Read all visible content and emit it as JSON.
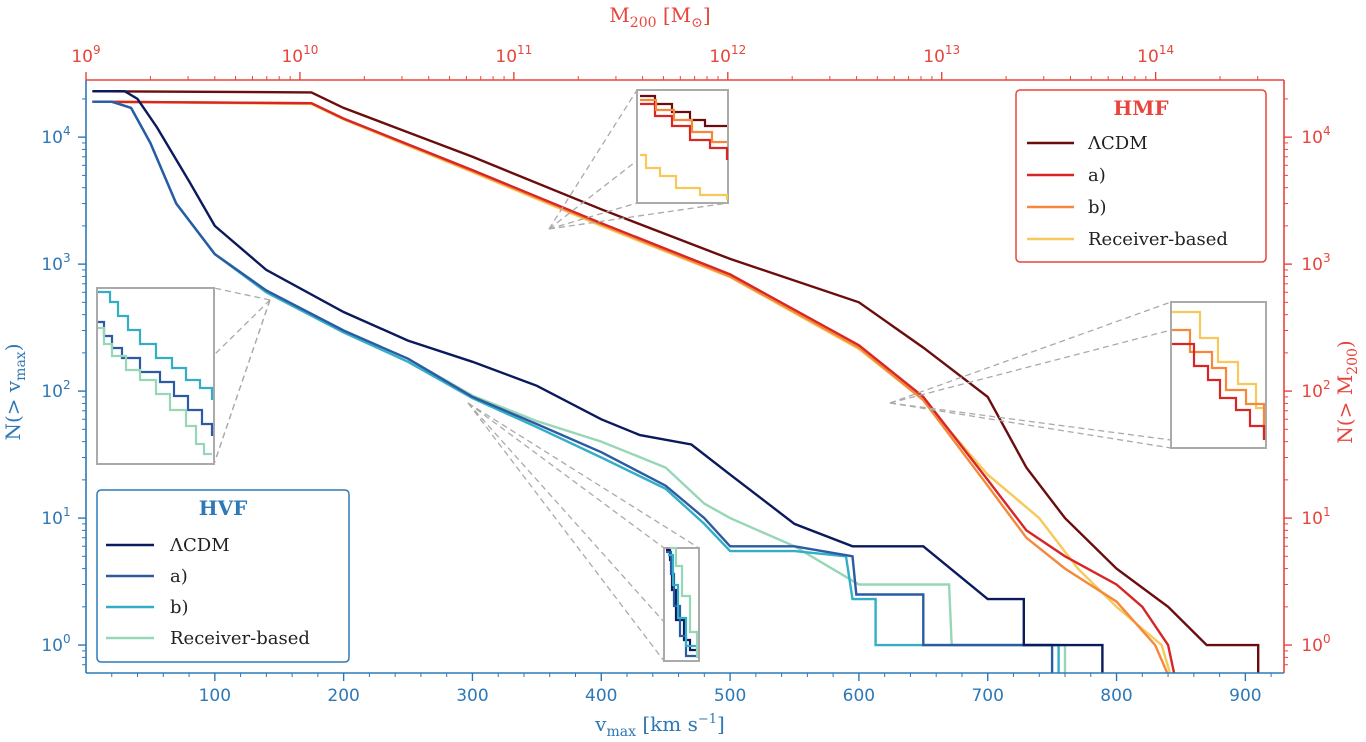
{
  "chart_data": {
    "type": "line",
    "colors": {
      "hvf_axis": "#2e78b5",
      "hmf_axis": "#e8453c",
      "hvf_lcdm": "#0a1a5c",
      "hvf_a": "#2a5ba3",
      "hvf_b": "#34aec6",
      "hvf_rb": "#97d6b6",
      "hmf_lcdm": "#6b0d0d",
      "hmf_a": "#d72626",
      "hmf_b": "#f5883a",
      "hmf_rb": "#f7c95a",
      "inset": "#aaaaaa"
    },
    "axes": {
      "xlabel_main": "v",
      "xlabel_sub": "max",
      "xlabel_units": " [km s",
      "xlabel_exp": "−1",
      "xlabel_close": "]",
      "xlim": [
        0,
        930
      ],
      "xticks": [
        100,
        200,
        300,
        400,
        500,
        600,
        700,
        800,
        900
      ],
      "xtick_labels": [
        "100",
        "200",
        "300",
        "400",
        "500",
        "600",
        "700",
        "800",
        "900"
      ],
      "top_label_main": "M",
      "top_label_sub": "200",
      "top_label_units": " [M",
      "top_label_sun": "⊙",
      "top_label_close": "]",
      "top_log_range": [
        9,
        14.6
      ],
      "top_tick_exps": [
        "9",
        "10",
        "11",
        "12",
        "13",
        "14"
      ],
      "ylabel_left_main": "N(> v",
      "ylabel_left_sub": "max",
      "ylabel_left_close": ")",
      "ylabel_right_main": "N(> M",
      "ylabel_right_sub": "200",
      "ylabel_right_close": ")",
      "ylim_log": [
        -0.22,
        4.45
      ],
      "ytick_exps": [
        "0",
        "1",
        "2",
        "3",
        "4"
      ]
    },
    "legend_hvf": {
      "title": "HVF",
      "position": "lower-left",
      "entries": [
        "ΛCDM",
        "a)",
        "b)",
        "Receiver-based"
      ]
    },
    "legend_hmf": {
      "title": "HMF",
      "position": "upper-right",
      "entries": [
        "ΛCDM",
        "a)",
        "b)",
        "Receiver-based"
      ]
    },
    "series_hvf": [
      {
        "name": "ΛCDM",
        "color_key": "hvf_lcdm",
        "points": [
          [
            5,
            23000
          ],
          [
            30,
            23000
          ],
          [
            40,
            20000
          ],
          [
            55,
            12000
          ],
          [
            80,
            4500
          ],
          [
            100,
            2000
          ],
          [
            140,
            900
          ],
          [
            200,
            420
          ],
          [
            250,
            250
          ],
          [
            300,
            170
          ],
          [
            350,
            110
          ],
          [
            400,
            60
          ],
          [
            430,
            45
          ],
          [
            470,
            38
          ],
          [
            500,
            22
          ],
          [
            550,
            9
          ],
          [
            595,
            6
          ],
          [
            600,
            6
          ],
          [
            650,
            6
          ],
          [
            700,
            2.3
          ],
          [
            728,
            2.3
          ],
          [
            728,
            1
          ],
          [
            789,
            1
          ],
          [
            789,
            0.55
          ]
        ]
      },
      {
        "name": "a)",
        "color_key": "hvf_a",
        "points": [
          [
            5,
            19000
          ],
          [
            20,
            19000
          ],
          [
            35,
            17000
          ],
          [
            50,
            9000
          ],
          [
            70,
            3000
          ],
          [
            100,
            1200
          ],
          [
            140,
            620
          ],
          [
            200,
            300
          ],
          [
            250,
            180
          ],
          [
            300,
            90
          ],
          [
            350,
            55
          ],
          [
            400,
            33
          ],
          [
            450,
            18
          ],
          [
            480,
            10
          ],
          [
            500,
            6
          ],
          [
            550,
            6
          ],
          [
            595,
            5
          ],
          [
            598,
            2.5
          ],
          [
            650,
            2.5
          ],
          [
            650,
            1
          ],
          [
            750,
            1
          ],
          [
            750,
            0.55
          ]
        ]
      },
      {
        "name": "b)",
        "color_key": "hvf_b",
        "points": [
          [
            5,
            19000
          ],
          [
            20,
            19000
          ],
          [
            35,
            17000
          ],
          [
            50,
            9000
          ],
          [
            70,
            3000
          ],
          [
            100,
            1200
          ],
          [
            140,
            600
          ],
          [
            200,
            290
          ],
          [
            250,
            170
          ],
          [
            300,
            88
          ],
          [
            350,
            52
          ],
          [
            400,
            30
          ],
          [
            450,
            17
          ],
          [
            480,
            9
          ],
          [
            500,
            5.5
          ],
          [
            550,
            5.5
          ],
          [
            590,
            5
          ],
          [
            595,
            2.3
          ],
          [
            613,
            2.3
          ],
          [
            613,
            1
          ],
          [
            755,
            1
          ],
          [
            755,
            0.55
          ]
        ]
      },
      {
        "name": "Receiver-based",
        "color_key": "hvf_rb",
        "points": [
          [
            5,
            19000
          ],
          [
            20,
            19000
          ],
          [
            35,
            17000
          ],
          [
            50,
            9000
          ],
          [
            70,
            3000
          ],
          [
            100,
            1200
          ],
          [
            140,
            620
          ],
          [
            200,
            290
          ],
          [
            250,
            180
          ],
          [
            300,
            92
          ],
          [
            350,
            58
          ],
          [
            400,
            40
          ],
          [
            450,
            25
          ],
          [
            480,
            13
          ],
          [
            500,
            10
          ],
          [
            550,
            6
          ],
          [
            600,
            3
          ],
          [
            670,
            3
          ],
          [
            672,
            1
          ],
          [
            760,
            1
          ],
          [
            760,
            0.55
          ]
        ]
      }
    ],
    "series_hmf": [
      {
        "name": "ΛCDM",
        "color_key": "hmf_lcdm",
        "points": [
          [
            5,
            23000
          ],
          [
            175,
            22500
          ],
          [
            200,
            17000
          ],
          [
            300,
            7000
          ],
          [
            400,
            2700
          ],
          [
            500,
            1100
          ],
          [
            600,
            500
          ],
          [
            650,
            220
          ],
          [
            700,
            90
          ],
          [
            730,
            25
          ],
          [
            760,
            10
          ],
          [
            800,
            4
          ],
          [
            840,
            2
          ],
          [
            870,
            1
          ],
          [
            910,
            1
          ],
          [
            910,
            0.55
          ]
        ]
      },
      {
        "name": "a)",
        "color_key": "hmf_a",
        "points": [
          [
            5,
            19000
          ],
          [
            175,
            18500
          ],
          [
            200,
            14000
          ],
          [
            300,
            5500
          ],
          [
            400,
            2100
          ],
          [
            500,
            830
          ],
          [
            600,
            230
          ],
          [
            650,
            90
          ],
          [
            700,
            20
          ],
          [
            730,
            8
          ],
          [
            760,
            5
          ],
          [
            800,
            3
          ],
          [
            820,
            2
          ],
          [
            840,
            1
          ],
          [
            845,
            0.55
          ]
        ]
      },
      {
        "name": "b)",
        "color_key": "hmf_b",
        "points": [
          [
            5,
            19000
          ],
          [
            175,
            18500
          ],
          [
            200,
            14000
          ],
          [
            300,
            5400
          ],
          [
            400,
            2050
          ],
          [
            500,
            800
          ],
          [
            600,
            220
          ],
          [
            650,
            85
          ],
          [
            700,
            18
          ],
          [
            730,
            7
          ],
          [
            760,
            4
          ],
          [
            800,
            2.2
          ],
          [
            830,
            1
          ],
          [
            840,
            0.55
          ]
        ]
      },
      {
        "name": "Receiver-based",
        "color_key": "hmf_rb",
        "points": [
          [
            5,
            19000
          ],
          [
            175,
            18200
          ],
          [
            200,
            13800
          ],
          [
            300,
            5300
          ],
          [
            400,
            2000
          ],
          [
            500,
            790
          ],
          [
            600,
            215
          ],
          [
            650,
            85
          ],
          [
            700,
            22
          ],
          [
            740,
            10
          ],
          [
            770,
            4
          ],
          [
            800,
            2
          ],
          [
            835,
            1
          ],
          [
            842,
            0.55
          ]
        ]
      }
    ]
  }
}
